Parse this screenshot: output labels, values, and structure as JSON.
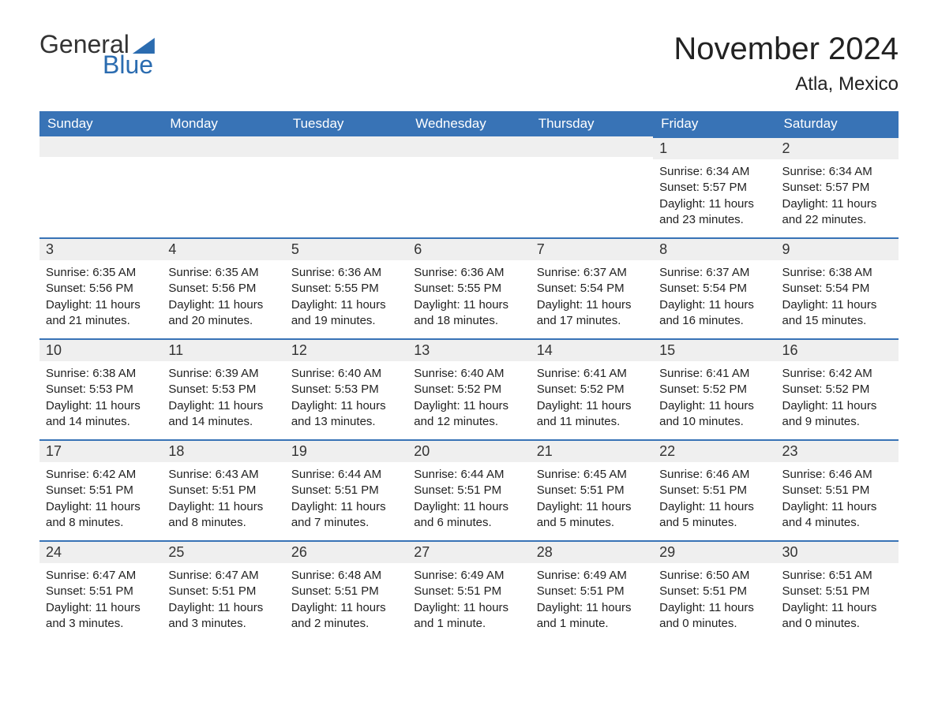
{
  "logo": {
    "text1": "General",
    "text2": "Blue"
  },
  "title": "November 2024",
  "location": "Atla, Mexico",
  "colors": {
    "header_bg": "#3873b6",
    "header_text": "#ffffff",
    "daynum_bg": "#efefef",
    "border_top": "#3873b6",
    "body_text": "#222222",
    "logo_blue": "#2b6cb0",
    "logo_dark": "#333333",
    "page_bg": "#ffffff"
  },
  "fonts": {
    "title_size_pt": 30,
    "location_size_pt": 18,
    "header_size_pt": 13,
    "daynum_size_pt": 14,
    "body_size_pt": 11
  },
  "weekdays": [
    "Sunday",
    "Monday",
    "Tuesday",
    "Wednesday",
    "Thursday",
    "Friday",
    "Saturday"
  ],
  "weeks": [
    [
      {
        "empty": true
      },
      {
        "empty": true
      },
      {
        "empty": true
      },
      {
        "empty": true
      },
      {
        "empty": true
      },
      {
        "day": "1",
        "sunrise": "Sunrise: 6:34 AM",
        "sunset": "Sunset: 5:57 PM",
        "daylight": "Daylight: 11 hours and 23 minutes."
      },
      {
        "day": "2",
        "sunrise": "Sunrise: 6:34 AM",
        "sunset": "Sunset: 5:57 PM",
        "daylight": "Daylight: 11 hours and 22 minutes."
      }
    ],
    [
      {
        "day": "3",
        "sunrise": "Sunrise: 6:35 AM",
        "sunset": "Sunset: 5:56 PM",
        "daylight": "Daylight: 11 hours and 21 minutes."
      },
      {
        "day": "4",
        "sunrise": "Sunrise: 6:35 AM",
        "sunset": "Sunset: 5:56 PM",
        "daylight": "Daylight: 11 hours and 20 minutes."
      },
      {
        "day": "5",
        "sunrise": "Sunrise: 6:36 AM",
        "sunset": "Sunset: 5:55 PM",
        "daylight": "Daylight: 11 hours and 19 minutes."
      },
      {
        "day": "6",
        "sunrise": "Sunrise: 6:36 AM",
        "sunset": "Sunset: 5:55 PM",
        "daylight": "Daylight: 11 hours and 18 minutes."
      },
      {
        "day": "7",
        "sunrise": "Sunrise: 6:37 AM",
        "sunset": "Sunset: 5:54 PM",
        "daylight": "Daylight: 11 hours and 17 minutes."
      },
      {
        "day": "8",
        "sunrise": "Sunrise: 6:37 AM",
        "sunset": "Sunset: 5:54 PM",
        "daylight": "Daylight: 11 hours and 16 minutes."
      },
      {
        "day": "9",
        "sunrise": "Sunrise: 6:38 AM",
        "sunset": "Sunset: 5:54 PM",
        "daylight": "Daylight: 11 hours and 15 minutes."
      }
    ],
    [
      {
        "day": "10",
        "sunrise": "Sunrise: 6:38 AM",
        "sunset": "Sunset: 5:53 PM",
        "daylight": "Daylight: 11 hours and 14 minutes."
      },
      {
        "day": "11",
        "sunrise": "Sunrise: 6:39 AM",
        "sunset": "Sunset: 5:53 PM",
        "daylight": "Daylight: 11 hours and 14 minutes."
      },
      {
        "day": "12",
        "sunrise": "Sunrise: 6:40 AM",
        "sunset": "Sunset: 5:53 PM",
        "daylight": "Daylight: 11 hours and 13 minutes."
      },
      {
        "day": "13",
        "sunrise": "Sunrise: 6:40 AM",
        "sunset": "Sunset: 5:52 PM",
        "daylight": "Daylight: 11 hours and 12 minutes."
      },
      {
        "day": "14",
        "sunrise": "Sunrise: 6:41 AM",
        "sunset": "Sunset: 5:52 PM",
        "daylight": "Daylight: 11 hours and 11 minutes."
      },
      {
        "day": "15",
        "sunrise": "Sunrise: 6:41 AM",
        "sunset": "Sunset: 5:52 PM",
        "daylight": "Daylight: 11 hours and 10 minutes."
      },
      {
        "day": "16",
        "sunrise": "Sunrise: 6:42 AM",
        "sunset": "Sunset: 5:52 PM",
        "daylight": "Daylight: 11 hours and 9 minutes."
      }
    ],
    [
      {
        "day": "17",
        "sunrise": "Sunrise: 6:42 AM",
        "sunset": "Sunset: 5:51 PM",
        "daylight": "Daylight: 11 hours and 8 minutes."
      },
      {
        "day": "18",
        "sunrise": "Sunrise: 6:43 AM",
        "sunset": "Sunset: 5:51 PM",
        "daylight": "Daylight: 11 hours and 8 minutes."
      },
      {
        "day": "19",
        "sunrise": "Sunrise: 6:44 AM",
        "sunset": "Sunset: 5:51 PM",
        "daylight": "Daylight: 11 hours and 7 minutes."
      },
      {
        "day": "20",
        "sunrise": "Sunrise: 6:44 AM",
        "sunset": "Sunset: 5:51 PM",
        "daylight": "Daylight: 11 hours and 6 minutes."
      },
      {
        "day": "21",
        "sunrise": "Sunrise: 6:45 AM",
        "sunset": "Sunset: 5:51 PM",
        "daylight": "Daylight: 11 hours and 5 minutes."
      },
      {
        "day": "22",
        "sunrise": "Sunrise: 6:46 AM",
        "sunset": "Sunset: 5:51 PM",
        "daylight": "Daylight: 11 hours and 5 minutes."
      },
      {
        "day": "23",
        "sunrise": "Sunrise: 6:46 AM",
        "sunset": "Sunset: 5:51 PM",
        "daylight": "Daylight: 11 hours and 4 minutes."
      }
    ],
    [
      {
        "day": "24",
        "sunrise": "Sunrise: 6:47 AM",
        "sunset": "Sunset: 5:51 PM",
        "daylight": "Daylight: 11 hours and 3 minutes."
      },
      {
        "day": "25",
        "sunrise": "Sunrise: 6:47 AM",
        "sunset": "Sunset: 5:51 PM",
        "daylight": "Daylight: 11 hours and 3 minutes."
      },
      {
        "day": "26",
        "sunrise": "Sunrise: 6:48 AM",
        "sunset": "Sunset: 5:51 PM",
        "daylight": "Daylight: 11 hours and 2 minutes."
      },
      {
        "day": "27",
        "sunrise": "Sunrise: 6:49 AM",
        "sunset": "Sunset: 5:51 PM",
        "daylight": "Daylight: 11 hours and 1 minute."
      },
      {
        "day": "28",
        "sunrise": "Sunrise: 6:49 AM",
        "sunset": "Sunset: 5:51 PM",
        "daylight": "Daylight: 11 hours and 1 minute."
      },
      {
        "day": "29",
        "sunrise": "Sunrise: 6:50 AM",
        "sunset": "Sunset: 5:51 PM",
        "daylight": "Daylight: 11 hours and 0 minutes."
      },
      {
        "day": "30",
        "sunrise": "Sunrise: 6:51 AM",
        "sunset": "Sunset: 5:51 PM",
        "daylight": "Daylight: 11 hours and 0 minutes."
      }
    ]
  ]
}
